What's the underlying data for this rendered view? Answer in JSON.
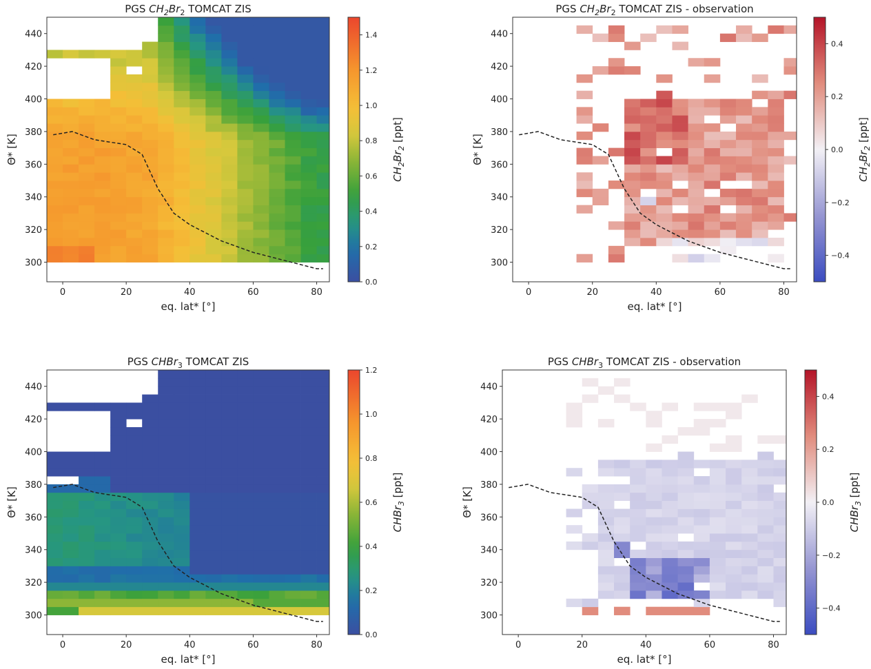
{
  "figure": {
    "panels": [
      {
        "title_prefix": "PGS ",
        "title_species": "CH2Br2",
        "title_suffix": " TOMCAT ZIS",
        "xlabel": "eq. lat* [°]",
        "ylabel": "Θ* [K]",
        "cb_label_species": "CH2Br2",
        "cb_label_unit": " [ppt]",
        "cb_ticks": [
          "0.0",
          "0.2",
          "0.4",
          "0.6",
          "0.8",
          "1.0",
          "1.2",
          "1.4"
        ]
      },
      {
        "title_prefix": "PGS ",
        "title_species": "CH2Br2",
        "title_suffix": " TOMCAT ZIS - observation",
        "xlabel": "eq. lat* [°]",
        "ylabel": "Θ* [K]",
        "cb_label_species": "CH2Br2",
        "cb_label_unit": " [ppt]",
        "cb_ticks": [
          "−0.4",
          "−0.2",
          "0.0",
          "0.2",
          "0.4"
        ]
      },
      {
        "title_prefix": "PGS ",
        "title_species": "CHBr3",
        "title_suffix": " TOMCAT ZIS",
        "xlabel": "eq. lat* [°]",
        "ylabel": "Θ* [K]",
        "cb_label_species": "CHBr3",
        "cb_label_unit": " [ppt]",
        "cb_ticks": [
          "0.0",
          "0.2",
          "0.4",
          "0.6",
          "0.8",
          "1.0",
          "1.2"
        ]
      },
      {
        "title_prefix": "PGS ",
        "title_species": "CHBr3",
        "title_suffix": " TOMCAT ZIS - observation",
        "xlabel": "eq. lat* [°]",
        "ylabel": "Θ* [K]",
        "cb_label_species": "CHBr3",
        "cb_label_unit": " [ppt]",
        "cb_ticks": [
          "−0.4",
          "−0.2",
          "0.0",
          "0.2",
          "0.4"
        ]
      }
    ]
  },
  "chart_data": [
    {
      "type": "heatmap",
      "title": "PGS CH2Br2 TOMCAT ZIS",
      "xlabel": "eq. lat* [°]",
      "ylabel": "Θ* [K]",
      "xlim": [
        -5,
        84
      ],
      "ylim": [
        288,
        450
      ],
      "xticks": [
        0,
        20,
        40,
        60,
        80
      ],
      "yticks": [
        300,
        320,
        340,
        360,
        380,
        400,
        420,
        440
      ],
      "colorbar": {
        "label": "CH2Br2 [ppt]",
        "range": [
          0.0,
          1.5
        ],
        "colormap": "blue-green-yellow-orange-red"
      },
      "grid_step": {
        "lat": 5,
        "theta": 5
      },
      "pattern": "values ~1.0-1.3 ppt below 380 K and equatorward of 30°, decreasing with latitude and altitude to ~0.1 ppt at 440 K near 80°; blank above 400 K at low latitudes",
      "cells": {
        "lat_min": -5,
        "lat_max": 85,
        "theta_min": 300,
        "theta_max": 450
      },
      "dashed_line": {
        "x": [
          -3,
          3,
          10,
          20,
          25,
          30,
          35,
          40,
          50,
          60,
          70,
          80,
          82
        ],
        "y": [
          378,
          380,
          375,
          372,
          366,
          345,
          330,
          323,
          313,
          306,
          301,
          296,
          296
        ]
      }
    },
    {
      "type": "heatmap",
      "title": "PGS CH2Br2 TOMCAT ZIS - observation",
      "xlabel": "eq. lat* [°]",
      "ylabel": "Θ* [K]",
      "xlim": [
        -5,
        84
      ],
      "ylim": [
        288,
        450
      ],
      "xticks": [
        0,
        20,
        40,
        60,
        80
      ],
      "yticks": [
        300,
        320,
        340,
        360,
        380,
        400,
        420,
        440
      ],
      "colorbar": {
        "label": "CH2Br2 [ppt]",
        "range": [
          -0.5,
          0.5
        ],
        "colormap": "diverging blue-white-red"
      },
      "pattern": "mostly positive differences 0.1-0.35 ppt between 20° and 80°, 310-420 K; sparse cells elsewhere",
      "dashed_line": {
        "x": [
          -3,
          3,
          10,
          20,
          25,
          30,
          35,
          40,
          50,
          60,
          70,
          80,
          82
        ],
        "y": [
          378,
          380,
          375,
          372,
          366,
          345,
          330,
          323,
          313,
          306,
          301,
          296,
          296
        ]
      }
    },
    {
      "type": "heatmap",
      "title": "PGS CHBr3 TOMCAT ZIS",
      "xlabel": "eq. lat* [°]",
      "ylabel": "Θ* [K]",
      "xlim": [
        -5,
        84
      ],
      "ylim": [
        288,
        450
      ],
      "xticks": [
        0,
        20,
        40,
        60,
        80
      ],
      "yticks": [
        300,
        320,
        340,
        360,
        380,
        400,
        420,
        440
      ],
      "colorbar": {
        "label": "CHBr3 [ppt]",
        "range": [
          0.0,
          1.2
        ],
        "colormap": "blue-green-yellow-orange-red"
      },
      "pattern": "values ~0.5-0.8 ppt at 300-315 K, ~0.1-0.3 ppt 320-370 K at low latitudes, near 0 elsewhere",
      "dashed_line": {
        "x": [
          -3,
          3,
          10,
          20,
          25,
          30,
          35,
          40,
          50,
          60,
          70,
          80,
          82
        ],
        "y": [
          378,
          380,
          375,
          372,
          366,
          345,
          330,
          323,
          313,
          306,
          301,
          296,
          296
        ]
      }
    },
    {
      "type": "heatmap",
      "title": "PGS CHBr3 TOMCAT ZIS - observation",
      "xlabel": "eq. lat* [°]",
      "ylabel": "Θ* [K]",
      "xlim": [
        -5,
        84
      ],
      "ylim": [
        288,
        450
      ],
      "xticks": [
        0,
        20,
        40,
        60,
        80
      ],
      "yticks": [
        300,
        320,
        340,
        360,
        380,
        400,
        420,
        440
      ],
      "colorbar": {
        "label": "CHBr3 [ppt]",
        "range": [
          -0.5,
          0.5
        ],
        "colormap": "diverging blue-white-red"
      },
      "pattern": "mostly small negative differences (-0.05 to -0.15 ppt), stronger (-0.3 to -0.4 ppt) near 35-60° and 310-330 K; a few positive cells near 300-305 K",
      "dashed_line": {
        "x": [
          -3,
          3,
          10,
          20,
          25,
          30,
          35,
          40,
          50,
          60,
          70,
          80,
          82
        ],
        "y": [
          378,
          380,
          375,
          372,
          366,
          345,
          330,
          323,
          313,
          306,
          301,
          296,
          296
        ]
      }
    }
  ]
}
